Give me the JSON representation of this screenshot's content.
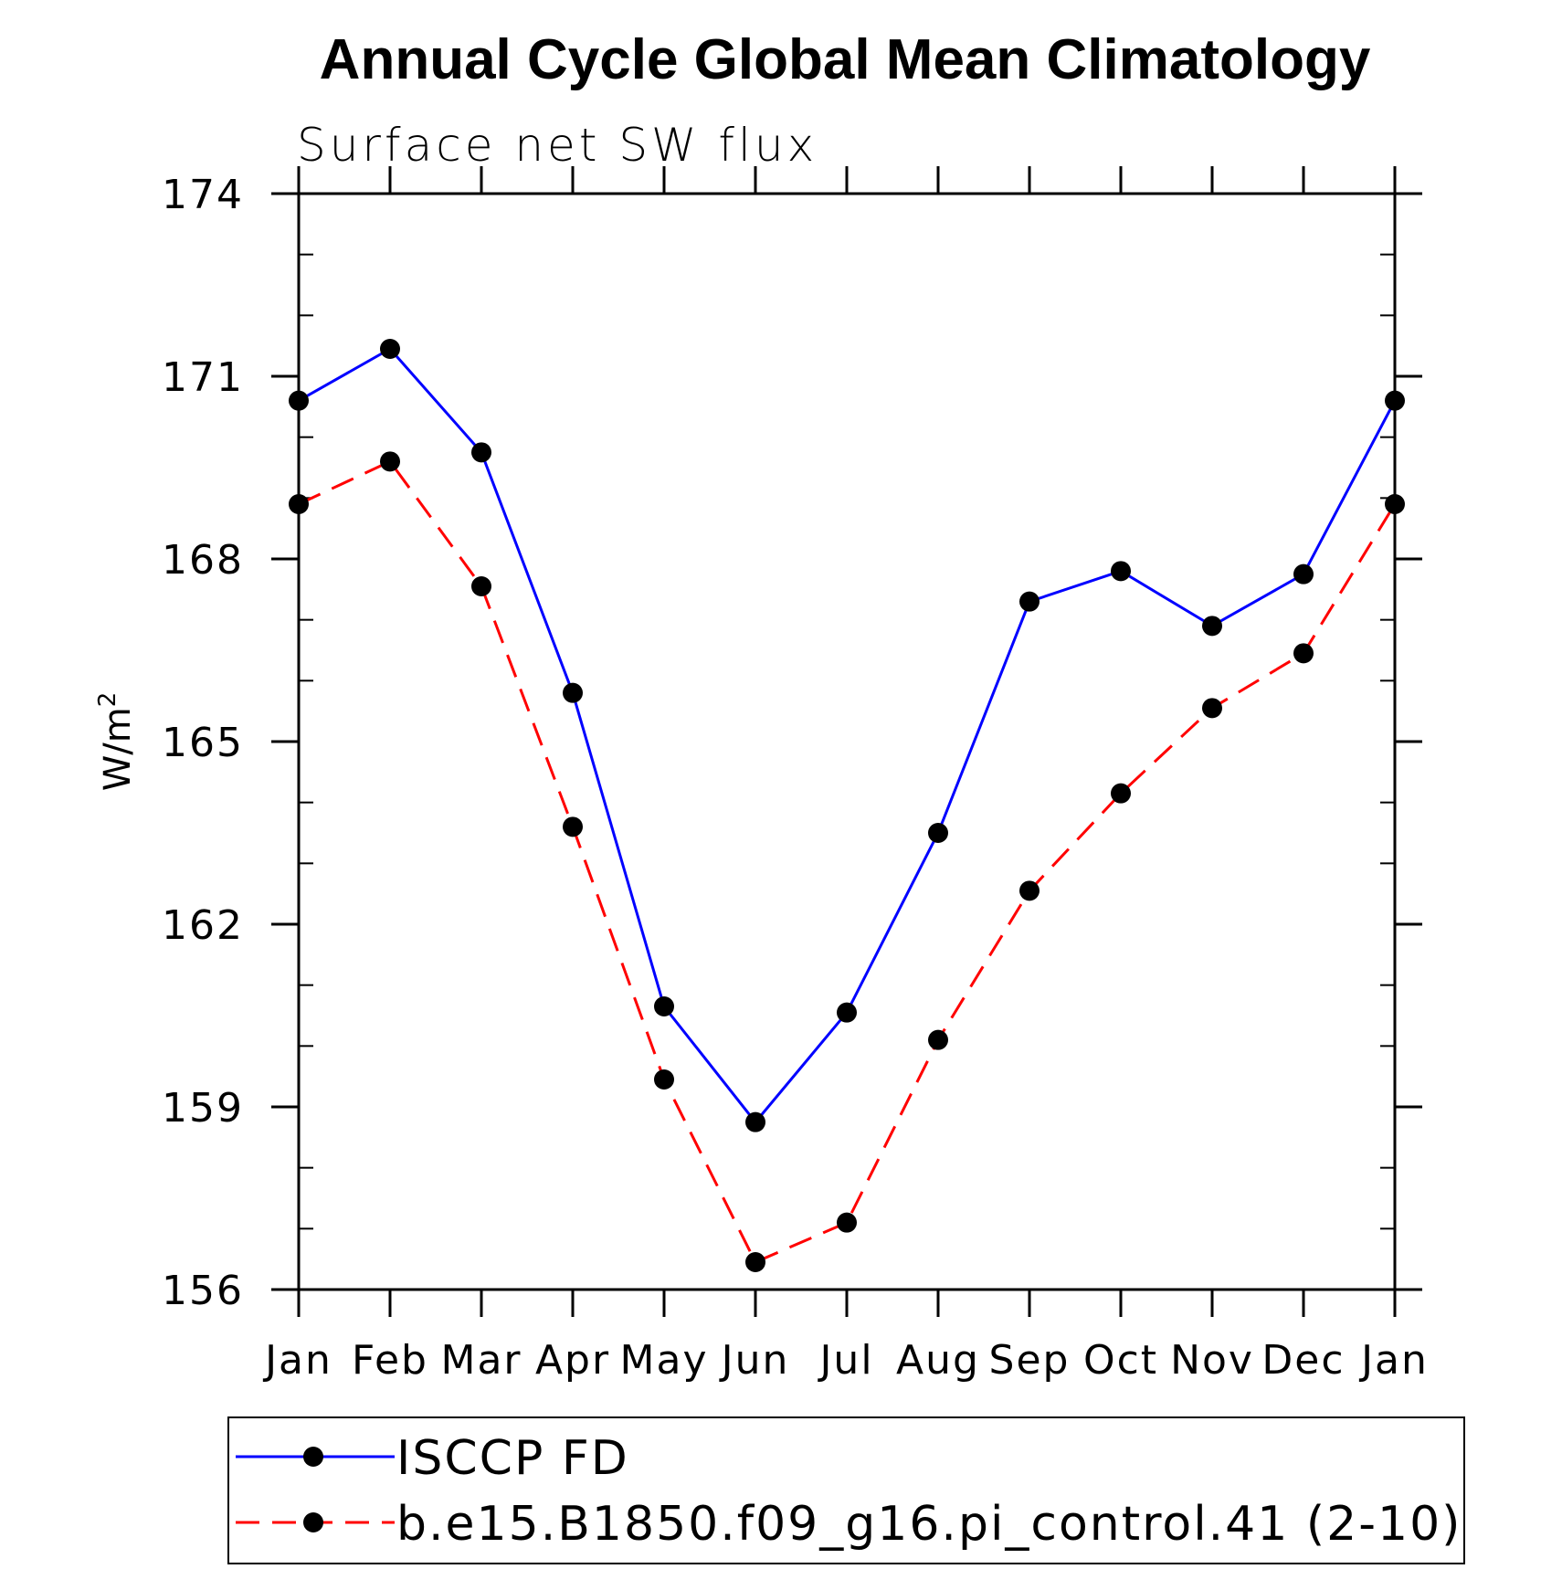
{
  "chart_data": {
    "type": "line",
    "title": "Annual Cycle Global Mean Climatology",
    "subtitle": "Surface net SW flux",
    "ylabel": "W/m",
    "ylabel_superscript": "2",
    "xlabel": "",
    "categories": [
      "Jan",
      "Feb",
      "Mar",
      "Apr",
      "May",
      "Jun",
      "Jul",
      "Aug",
      "Sep",
      "Oct",
      "Nov",
      "Dec",
      "Jan"
    ],
    "ylim": [
      156,
      174
    ],
    "yticks": [
      156,
      159,
      162,
      165,
      168,
      171,
      174
    ],
    "y_minor_step": 1,
    "grid": false,
    "legend_position": "bottom",
    "series": [
      {
        "name": "ISCCP FD",
        "color": "#0000ff",
        "dash": "solid",
        "marker": "filled-circle",
        "values": [
          170.6,
          171.45,
          169.75,
          165.8,
          160.65,
          158.75,
          160.55,
          163.5,
          167.3,
          167.8,
          166.9,
          167.75,
          170.6
        ]
      },
      {
        "name": "b.e15.B1850.f09_g16.pi_control.41 (2-10)",
        "color": "#ff0000",
        "dash": "dashed",
        "marker": "filled-circle",
        "values": [
          168.9,
          169.6,
          167.55,
          163.6,
          159.45,
          156.45,
          157.1,
          160.1,
          162.55,
          164.15,
          165.55,
          166.45,
          168.9
        ]
      }
    ]
  }
}
